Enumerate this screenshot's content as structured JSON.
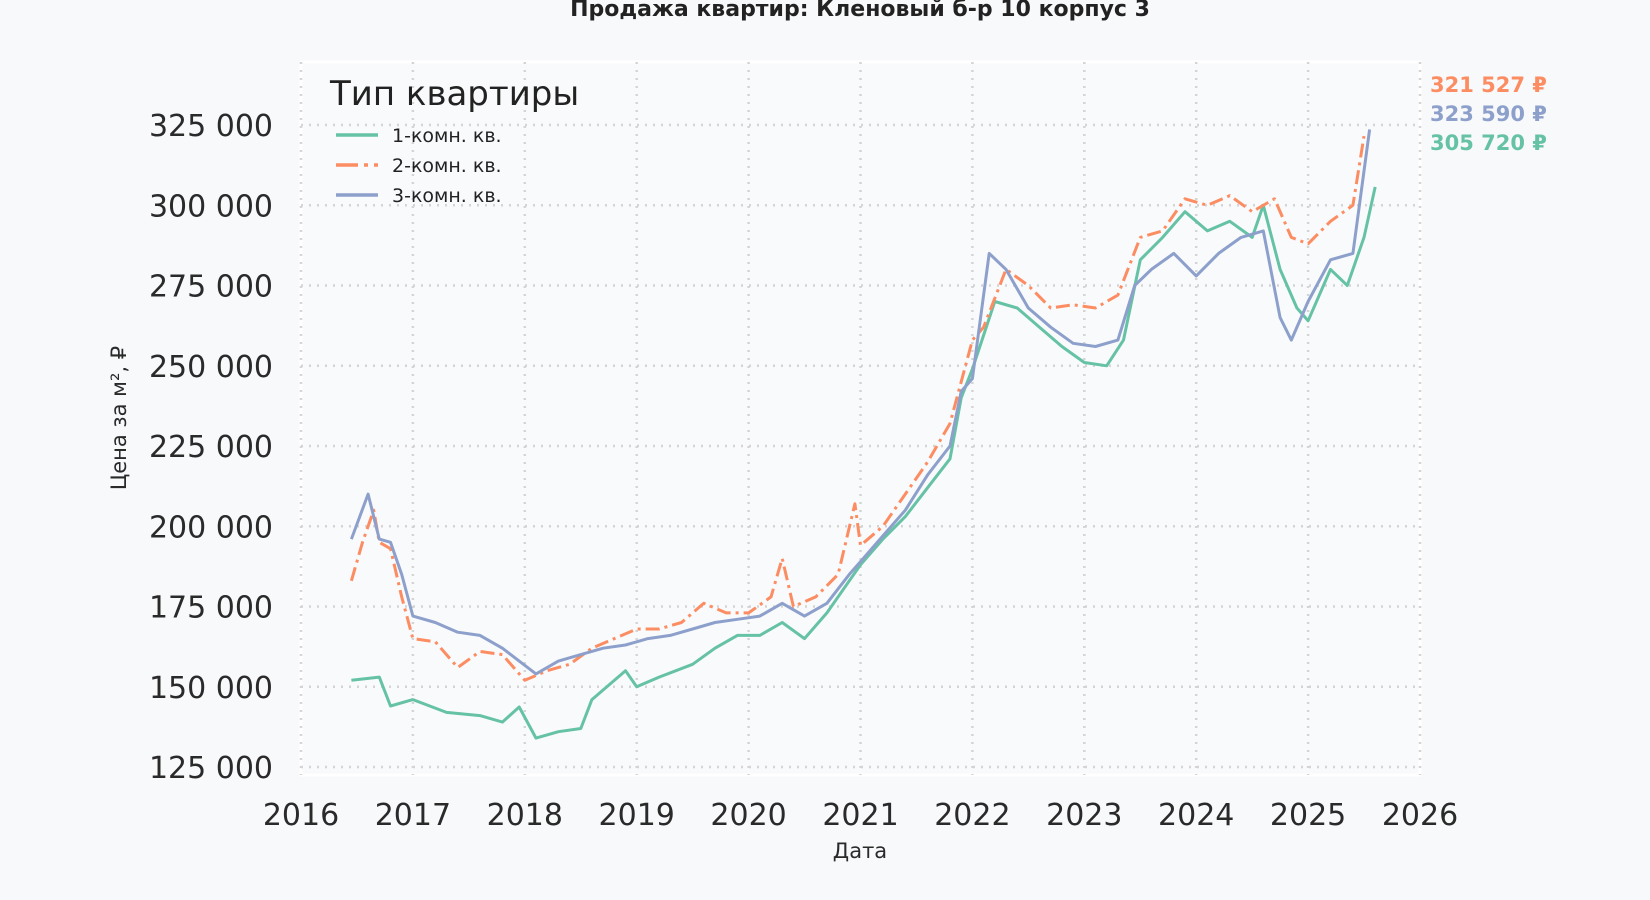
{
  "chart_data": {
    "type": "line",
    "title": "Продажа квартир: Кленовый б-р 10 корпус 3",
    "xlabel": "Дата",
    "ylabel": "Цена за м², ₽",
    "xlim": [
      2016,
      2026
    ],
    "ylim": [
      120000,
      340000
    ],
    "x_ticks": [
      "2016",
      "2017",
      "2018",
      "2019",
      "2020",
      "2021",
      "2022",
      "2023",
      "2024",
      "2025",
      "2026"
    ],
    "y_ticks": [
      "125 000",
      "150 000",
      "175 000",
      "200 000",
      "225 000",
      "250 000",
      "275 000",
      "300 000",
      "325 000"
    ],
    "grid": true,
    "legend": {
      "title": "Тип квартиры",
      "placement": "top-right"
    },
    "series": [
      {
        "name": "1-комн. кв.",
        "color": "#66c2a5",
        "style": "solid",
        "end_label": "305 720 ₽",
        "x": [
          2016.45,
          2016.7,
          2016.8,
          2017.0,
          2017.3,
          2017.6,
          2017.8,
          2017.95,
          2018.1,
          2018.3,
          2018.5,
          2018.6,
          2018.9,
          2019.0,
          2019.2,
          2019.5,
          2019.7,
          2019.9,
          2020.1,
          2020.3,
          2020.5,
          2020.7,
          2020.9,
          2021.0,
          2021.2,
          2021.4,
          2021.6,
          2021.8,
          2021.9,
          2022.0,
          2022.2,
          2022.4,
          2022.6,
          2022.8,
          2023.0,
          2023.2,
          2023.35,
          2023.5,
          2023.7,
          2023.9,
          2024.1,
          2024.3,
          2024.5,
          2024.6,
          2024.75,
          2024.9,
          2025.0,
          2025.2,
          2025.35,
          2025.5,
          2025.6
        ],
        "y": [
          152000,
          153000,
          144000,
          146000,
          142000,
          141000,
          139000,
          143700,
          134000,
          136000,
          137000,
          146000,
          155000,
          150000,
          153000,
          157000,
          162000,
          166000,
          166000,
          170000,
          165000,
          173000,
          183000,
          188000,
          196000,
          203000,
          212000,
          221000,
          240000,
          249000,
          270000,
          268000,
          262000,
          256000,
          251000,
          250000,
          258000,
          283000,
          290000,
          298000,
          292000,
          295000,
          290000,
          300000,
          280000,
          268000,
          264000,
          280000,
          275000,
          290000,
          305720
        ]
      },
      {
        "name": "2-комн. кв.",
        "color": "#fc8d62",
        "style": "dashdot",
        "end_label": "321 527 ₽",
        "x": [
          2016.45,
          2016.55,
          2016.65,
          2016.7,
          2016.8,
          2016.9,
          2017.0,
          2017.2,
          2017.4,
          2017.6,
          2017.8,
          2018.0,
          2018.2,
          2018.4,
          2018.6,
          2018.8,
          2019.0,
          2019.2,
          2019.4,
          2019.6,
          2019.8,
          2020.0,
          2020.2,
          2020.3,
          2020.4,
          2020.6,
          2020.8,
          2020.95,
          2021.0,
          2021.2,
          2021.4,
          2021.6,
          2021.8,
          2021.9,
          2022.0,
          2022.1,
          2022.3,
          2022.5,
          2022.7,
          2022.9,
          2023.1,
          2023.3,
          2023.5,
          2023.7,
          2023.9,
          2024.1,
          2024.3,
          2024.5,
          2024.7,
          2024.85,
          2025.0,
          2025.2,
          2025.4,
          2025.5
        ],
        "y": [
          183000,
          195000,
          205000,
          195000,
          193000,
          178000,
          165000,
          164000,
          156000,
          161000,
          160000,
          152000,
          155000,
          157000,
          162000,
          165000,
          168000,
          168000,
          170000,
          176000,
          173000,
          173000,
          178000,
          190000,
          175000,
          178000,
          185000,
          207000,
          194000,
          200000,
          210000,
          220000,
          232000,
          245000,
          258000,
          262000,
          280000,
          275000,
          268000,
          269000,
          268000,
          272000,
          290000,
          292000,
          302000,
          300000,
          303000,
          298000,
          302000,
          290000,
          288000,
          295000,
          300000,
          321527
        ]
      },
      {
        "name": "3-комн. кв.",
        "color": "#8da0cb",
        "style": "solid",
        "end_label": "323 590 ₽",
        "x": [
          2016.45,
          2016.6,
          2016.7,
          2016.8,
          2016.9,
          2017.0,
          2017.2,
          2017.4,
          2017.6,
          2017.8,
          2017.95,
          2018.1,
          2018.3,
          2018.5,
          2018.7,
          2018.9,
          2019.1,
          2019.3,
          2019.5,
          2019.7,
          2019.9,
          2020.1,
          2020.3,
          2020.5,
          2020.7,
          2020.9,
          2021.0,
          2021.2,
          2021.4,
          2021.6,
          2021.8,
          2021.9,
          2022.0,
          2022.15,
          2022.3,
          2022.5,
          2022.7,
          2022.9,
          2023.1,
          2023.3,
          2023.45,
          2023.6,
          2023.8,
          2024.0,
          2024.2,
          2024.4,
          2024.6,
          2024.75,
          2024.85,
          2025.0,
          2025.2,
          2025.4,
          2025.55
        ],
        "y": [
          196000,
          210000,
          196000,
          195000,
          185000,
          172000,
          170000,
          167000,
          166000,
          162000,
          158000,
          154000,
          158000,
          160000,
          162000,
          163000,
          165000,
          166000,
          168000,
          170000,
          171000,
          172000,
          176000,
          172000,
          176000,
          185000,
          189000,
          197000,
          205000,
          216000,
          225000,
          242000,
          246000,
          285000,
          280000,
          268000,
          262000,
          257000,
          256000,
          258000,
          275000,
          280000,
          285000,
          278000,
          285000,
          290000,
          292000,
          265000,
          258000,
          270000,
          283000,
          285000,
          323590
        ]
      }
    ]
  }
}
